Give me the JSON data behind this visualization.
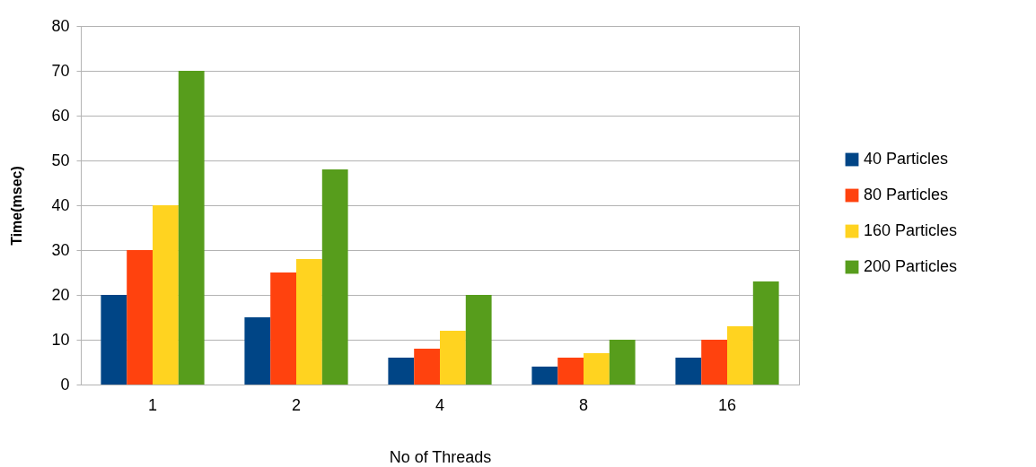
{
  "chart_data": {
    "type": "bar",
    "xlabel": "No of Threads",
    "ylabel": "Time(msec)",
    "categories": [
      "1",
      "2",
      "4",
      "8",
      "16"
    ],
    "series": [
      {
        "name": "40 Particles",
        "color": "#004586",
        "values": [
          20,
          15,
          6,
          4,
          6
        ]
      },
      {
        "name": "80 Particles",
        "color": "#ff420e",
        "values": [
          30,
          25,
          8,
          6,
          10
        ]
      },
      {
        "name": "160 Particles",
        "color": "#ffd320",
        "values": [
          40,
          28,
          12,
          7,
          13
        ]
      },
      {
        "name": "200 Particles",
        "color": "#579d1c",
        "values": [
          70,
          48,
          20,
          10,
          23
        ]
      }
    ],
    "ylim": [
      0,
      80
    ],
    "yticks": [
      0,
      10,
      20,
      30,
      40,
      50,
      60,
      70,
      80
    ],
    "grid": "y",
    "legend": "right"
  }
}
